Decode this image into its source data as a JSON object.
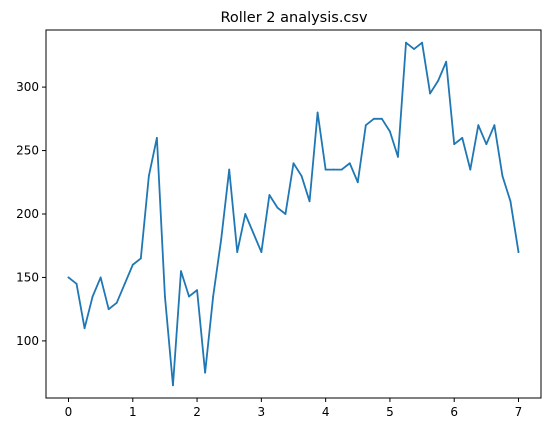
{
  "chart_data": {
    "type": "line",
    "title": "Roller 2 analysis.csv",
    "xlabel": "",
    "ylabel": "",
    "xlim": [
      -0.35,
      7.35
    ],
    "ylim": [
      55,
      345
    ],
    "xticks": [
      0,
      1,
      2,
      3,
      4,
      5,
      6,
      7
    ],
    "yticks": [
      100,
      150,
      200,
      250,
      300
    ],
    "grid": false,
    "legend": null,
    "line_color": "#1f77b4",
    "series": [
      {
        "x": [
          0,
          0.125,
          0.25,
          0.375,
          0.5,
          0.625,
          0.75,
          0.875,
          1.0,
          1.125,
          1.25,
          1.375,
          1.5,
          1.625,
          1.75,
          1.875,
          2.0,
          2.125,
          2.25,
          2.375,
          2.5,
          2.625,
          2.75,
          2.875,
          3.0,
          3.125,
          3.25,
          3.375,
          3.5,
          3.625,
          3.75,
          3.875,
          4.0,
          4.125,
          4.25,
          4.375,
          4.5,
          4.625,
          4.75,
          4.875,
          5.0,
          5.125,
          5.25,
          5.375,
          5.5,
          5.625,
          5.75,
          5.875,
          6.0,
          6.125,
          6.25,
          6.375,
          6.5,
          6.625,
          6.75,
          6.875,
          7.0
        ],
        "y": [
          150,
          145,
          110,
          135,
          150,
          125,
          130,
          145,
          160,
          165,
          230,
          260,
          135,
          65,
          155,
          135,
          140,
          75,
          135,
          180,
          235,
          170,
          200,
          185,
          170,
          215,
          205,
          200,
          240,
          230,
          210,
          280,
          235,
          235,
          235,
          240,
          225,
          270,
          275,
          275,
          265,
          245,
          335,
          330,
          335,
          295,
          305,
          320,
          255,
          260,
          235,
          270,
          255,
          270,
          230,
          210,
          170
        ]
      }
    ]
  }
}
